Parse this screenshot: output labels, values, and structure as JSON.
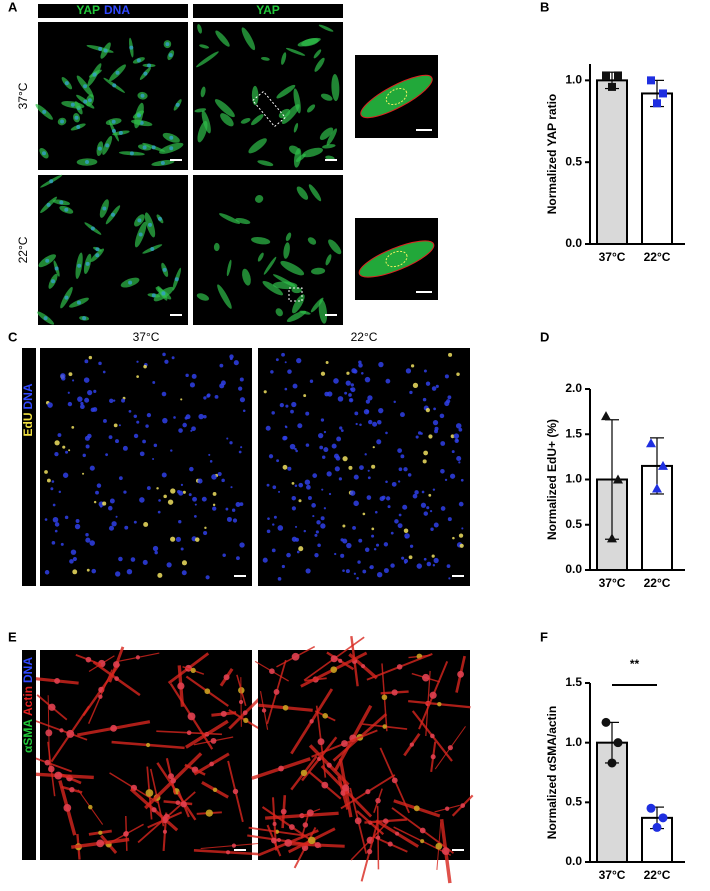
{
  "panel_letters": [
    "A",
    "B",
    "C",
    "D",
    "E",
    "F"
  ],
  "panel_a": {
    "column_headers": [
      [
        "YAP",
        "DNA"
      ],
      [
        "YAP"
      ]
    ],
    "row_labels": [
      "37°C",
      "22°C"
    ]
  },
  "panel_c": {
    "column_labels": [
      "37°C",
      "22°C"
    ],
    "stain_labels": [
      "EdU",
      "DNA"
    ]
  },
  "panel_e": {
    "stain_labels": [
      "αSMA",
      "Actin",
      "DNA"
    ]
  },
  "chart_data": [
    {
      "type": "bar",
      "y_label": "Normalized YAP ratio",
      "categories": [
        "37°C",
        "22°C"
      ],
      "values": [
        1.0,
        0.92
      ],
      "errors": [
        0.05,
        0.08
      ],
      "points": [
        [
          1.03,
          1.03,
          0.96
        ],
        [
          1.0,
          0.92,
          0.86
        ]
      ],
      "marker": "square",
      "bar_colors": [
        "#d9d9d9",
        "#ffffff"
      ],
      "point_colors": [
        "#111111",
        "#1f2fe0"
      ],
      "ylim": [
        0,
        1.1
      ],
      "yticks": [
        {
          "value": 0,
          "label": "0.0"
        },
        {
          "value": 0.5,
          "label": "0.5"
        },
        {
          "value": 1,
          "label": "1.0"
        }
      ]
    },
    {
      "type": "bar",
      "y_label": "Normalized EdU+ (%)",
      "categories": [
        "37°C",
        "22°C"
      ],
      "values": [
        1.0,
        1.15
      ],
      "errors": [
        0.66,
        0.31
      ],
      "points": [
        [
          1.7,
          1.0,
          0.35
        ],
        [
          1.4,
          1.15,
          0.9
        ]
      ],
      "marker": "triangle",
      "bar_colors": [
        "#d9d9d9",
        "#ffffff"
      ],
      "point_colors": [
        "#111111",
        "#1f2fe0"
      ],
      "ylim": [
        0,
        2
      ],
      "yticks": [
        {
          "value": 0,
          "label": "0.0"
        },
        {
          "value": 0.5,
          "label": "0.5"
        },
        {
          "value": 1,
          "label": "1.0"
        },
        {
          "value": 1.5,
          "label": "1.5"
        },
        {
          "value": 2,
          "label": "2.0"
        }
      ]
    },
    {
      "type": "bar",
      "y_label": "Normalized αSMA/actin",
      "categories": [
        "37°C",
        "22°C"
      ],
      "values": [
        1.0,
        0.37
      ],
      "errors": [
        0.17,
        0.09
      ],
      "points": [
        [
          1.17,
          1.0,
          0.83
        ],
        [
          0.45,
          0.37,
          0.29
        ]
      ],
      "marker": "circle",
      "bar_colors": [
        "#d9d9d9",
        "#ffffff"
      ],
      "point_colors": [
        "#111111",
        "#1f2fe0"
      ],
      "ylim": [
        0,
        1.5
      ],
      "annotation": "**",
      "yticks": [
        {
          "value": 0,
          "label": "0.0"
        },
        {
          "value": 0.5,
          "label": "0.5"
        },
        {
          "value": 1,
          "label": "1.0"
        },
        {
          "value": 1.5,
          "label": "1.5"
        }
      ]
    }
  ]
}
